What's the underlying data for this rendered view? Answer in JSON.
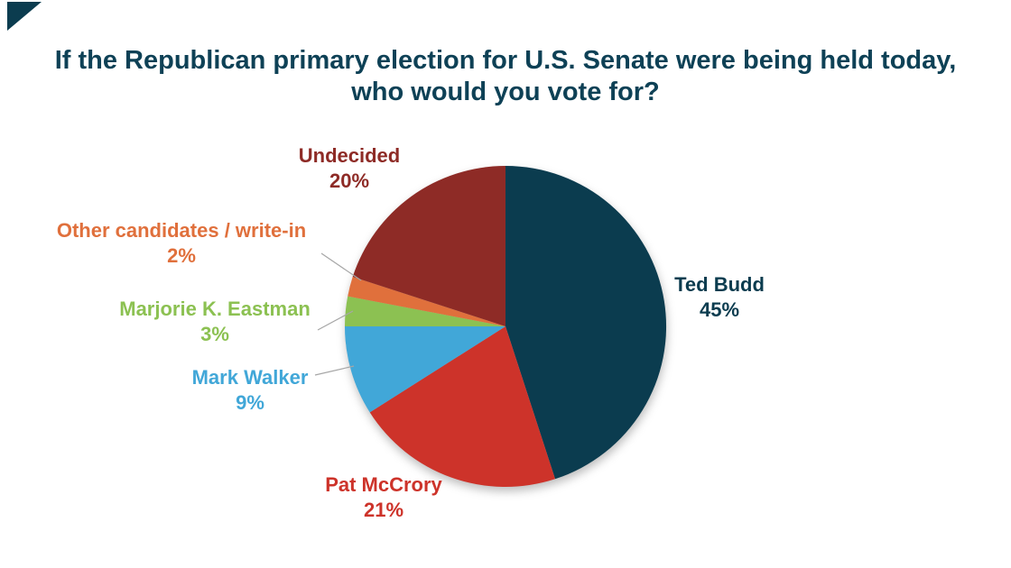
{
  "title": "If the Republican primary election for U.S. Senate were being held today, who would you vote for?",
  "colors": {
    "title_text": "#0e4156",
    "leader_line": "#a6a6a6",
    "background": "#ffffff",
    "corner_triangle": "#0b3c4f"
  },
  "chart_data": {
    "type": "pie",
    "title": "If the Republican primary election for U.S. Senate were being held today, who would you vote for?",
    "categories": [
      "Ted Budd",
      "Pat McCrory",
      "Mark Walker",
      "Marjorie K. Eastman",
      "Other candidates / write-in",
      "Undecided"
    ],
    "values": [
      45,
      21,
      9,
      3,
      2,
      20
    ],
    "unit": "%",
    "colors": [
      "#0b3c4f",
      "#cd332a",
      "#41a7d8",
      "#8cc152",
      "#e0703c",
      "#8e2b26"
    ],
    "start_angle_deg": 0,
    "direction": "clockwise",
    "legend_position": "none",
    "data_labels": "outside, name + percent, colored to match slice",
    "labels": [
      {
        "name": "Ted Budd",
        "pct": "45%"
      },
      {
        "name": "Pat McCrory",
        "pct": "21%"
      },
      {
        "name": "Mark Walker",
        "pct": "9%"
      },
      {
        "name": "Marjorie K. Eastman",
        "pct": "3%"
      },
      {
        "name": "Other candidates / write-in",
        "pct": "2%"
      },
      {
        "name": "Undecided",
        "pct": "20%"
      }
    ]
  }
}
